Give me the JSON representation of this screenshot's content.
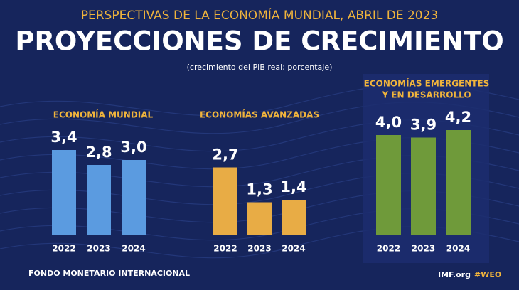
{
  "header": {
    "supertitle": "PERSPECTIVAS DE LA ECONOMÍA MUNDIAL, ABRIL DE 2023",
    "title": "PROYECCIONES DE CRECIMIENTO",
    "subtitle": "(crecimiento del PIB real; porcentaje)"
  },
  "chart_data": [
    {
      "type": "bar",
      "title": [
        "ECONOMÍA MUNDIAL"
      ],
      "categories": [
        "2022",
        "2023",
        "2024"
      ],
      "values": [
        3.4,
        2.8,
        3.0
      ],
      "value_labels": [
        "3,4",
        "2,8",
        "3,0"
      ],
      "color": "#5b9be0"
    },
    {
      "type": "bar",
      "title": [
        "ECONOMÍAS AVANZADAS"
      ],
      "categories": [
        "2022",
        "2023",
        "2024"
      ],
      "values": [
        2.7,
        1.3,
        1.4
      ],
      "value_labels": [
        "2,7",
        "1,3",
        "1,4"
      ],
      "color": "#e8ac45"
    },
    {
      "type": "bar",
      "title": [
        "ECONOMÍAS EMERGENTES",
        "Y EN DESARROLLO"
      ],
      "categories": [
        "2022",
        "2023",
        "2024"
      ],
      "values": [
        4.0,
        3.9,
        4.2
      ],
      "value_labels": [
        "4,0",
        "3,9",
        "4,2"
      ],
      "color": "#6f9a3a"
    }
  ],
  "footer": {
    "left": "FONDO MONETARIO INTERNACIONAL",
    "site": "IMF.org",
    "tag": "#WEO"
  }
}
